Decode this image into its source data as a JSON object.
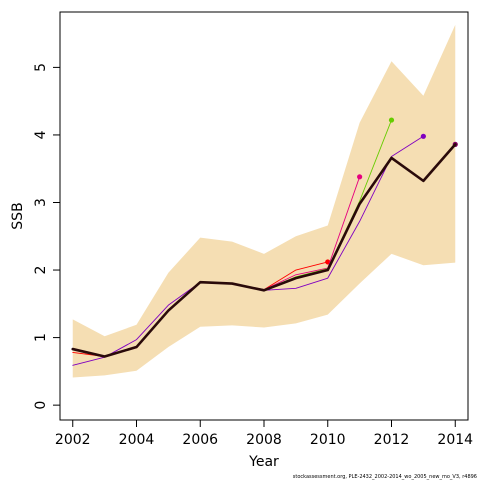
{
  "chart_data": {
    "type": "line",
    "xlabel": "Year",
    "ylabel": "SSB",
    "xlim": [
      2001.6,
      2014.4
    ],
    "ylim": [
      -0.22,
      5.82
    ],
    "x_ticks": [
      2002,
      2004,
      2006,
      2008,
      2010,
      2012,
      2014
    ],
    "y_ticks": [
      0,
      1,
      2,
      3,
      4,
      5
    ],
    "x_tick_labels": [
      "2002",
      "2004",
      "2006",
      "2008",
      "2010",
      "2012",
      "2014"
    ],
    "y_tick_labels": [
      "0",
      "1",
      "2",
      "3",
      "4",
      "5"
    ],
    "grid": false,
    "confidence_band": {
      "color": "#f5deb3",
      "x": [
        2002,
        2003,
        2004,
        2005,
        2006,
        2007,
        2008,
        2009,
        2010,
        2011,
        2012,
        2013,
        2014
      ],
      "upper": [
        1.27,
        1.02,
        1.19,
        1.96,
        2.48,
        2.42,
        2.24,
        2.5,
        2.66,
        4.18,
        5.09,
        4.58,
        5.63
      ],
      "lower": [
        0.41,
        0.44,
        0.51,
        0.86,
        1.16,
        1.18,
        1.15,
        1.21,
        1.34,
        1.8,
        2.24,
        2.07,
        2.11
      ]
    },
    "series": [
      {
        "color": "#ff0000",
        "x": [
          2002,
          2003,
          2004,
          2005,
          2006,
          2007,
          2008,
          2009,
          2010
        ],
        "values": [
          0.78,
          0.72,
          0.85,
          1.4,
          1.82,
          1.8,
          1.71,
          2.0,
          2.12
        ]
      },
      {
        "color": "#e6007e",
        "x": [
          2002,
          2003,
          2004,
          2005,
          2006,
          2007,
          2008,
          2009,
          2010,
          2011
        ],
        "values": [
          0.82,
          0.71,
          0.86,
          1.4,
          1.82,
          1.8,
          1.71,
          1.93,
          2.03,
          3.38
        ]
      },
      {
        "color": "#66cc00",
        "x": [
          2002,
          2003,
          2004,
          2005,
          2006,
          2007,
          2008,
          2009,
          2010,
          2011,
          2012
        ],
        "values": [
          0.83,
          0.72,
          0.86,
          1.4,
          1.82,
          1.8,
          1.7,
          1.9,
          2.02,
          3.02,
          4.22
        ]
      },
      {
        "color": "#8000c0",
        "x": [
          2002,
          2003,
          2004,
          2005,
          2006,
          2007,
          2008,
          2009,
          2010,
          2011,
          2012,
          2013
        ],
        "values": [
          0.59,
          0.71,
          0.97,
          1.48,
          1.82,
          1.8,
          1.7,
          1.73,
          1.88,
          2.72,
          3.68,
          3.98
        ]
      },
      {
        "color": "#800060",
        "x": [
          2002,
          2003,
          2004,
          2005,
          2006,
          2007,
          2008,
          2009,
          2010,
          2011,
          2012,
          2013,
          2014
        ],
        "values": [
          0.83,
          0.72,
          0.86,
          1.4,
          1.82,
          1.8,
          1.7,
          1.88,
          2.0,
          2.98,
          3.66,
          3.32,
          3.86
        ]
      },
      {
        "color": "#2a0a0a",
        "x": [
          2002,
          2003,
          2004,
          2005,
          2006,
          2007,
          2008,
          2009,
          2010,
          2011,
          2012,
          2013,
          2014
        ],
        "values": [
          0.83,
          0.72,
          0.86,
          1.4,
          1.82,
          1.8,
          1.7,
          1.88,
          2.0,
          2.98,
          3.66,
          3.32,
          3.86
        ],
        "bold": true
      }
    ],
    "footnote": "stockassessment.org, PLE-2432_2002-2014_wo_2005_new_mo_V3, r4896"
  }
}
